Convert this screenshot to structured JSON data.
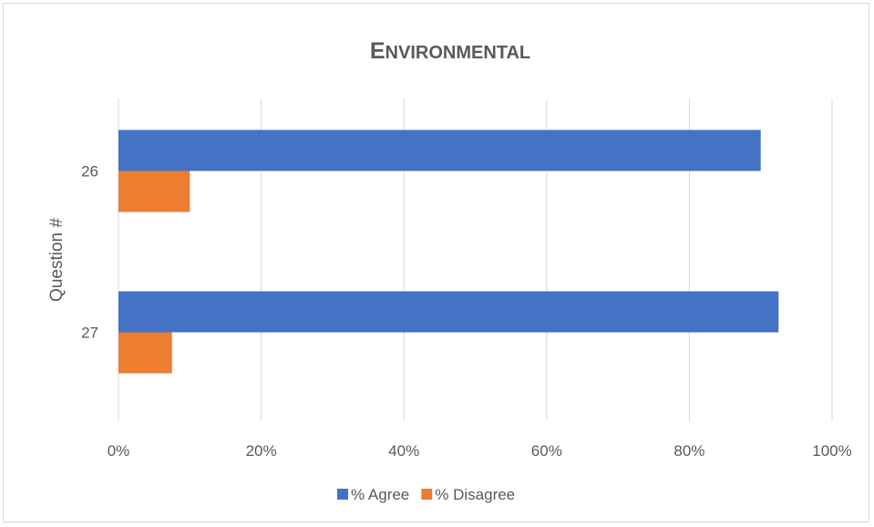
{
  "chart_data": {
    "type": "bar",
    "orientation": "horizontal",
    "title": "Environmental",
    "xlabel": "",
    "ylabel": "Question #",
    "categories": [
      "26",
      "27"
    ],
    "series": [
      {
        "name": "% Agree",
        "values": [
          0.9,
          0.925
        ],
        "color": "#4472c4"
      },
      {
        "name": "% Disagree",
        "values": [
          0.1,
          0.075
        ],
        "color": "#ed7d31"
      }
    ],
    "xlim": [
      0,
      1
    ],
    "xticks": [
      "0%",
      "20%",
      "40%",
      "60%",
      "80%",
      "100%"
    ],
    "grid": true,
    "legend_position": "bottom"
  }
}
